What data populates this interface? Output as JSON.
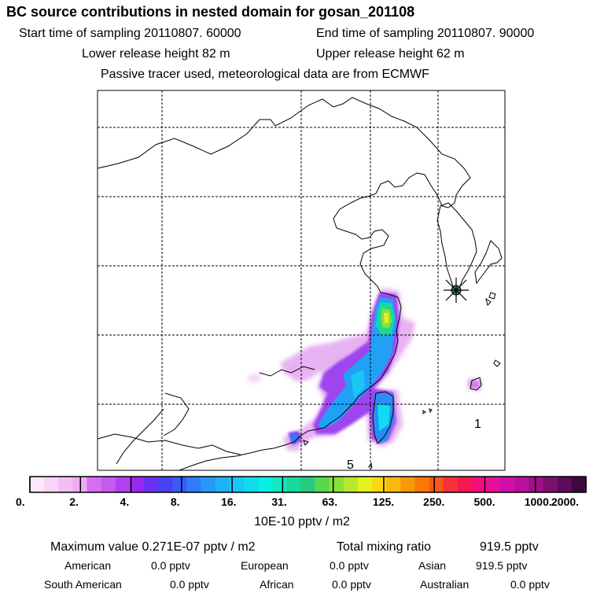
{
  "header": {
    "title": "BC  source contributions in nested domain for gosan_201108",
    "start_time": "Start time of sampling 20110807. 60000",
    "end_time": "End time of sampling 20110807. 90000",
    "lower_height": "Lower release height   82 m",
    "upper_height": "Upper release height   62 m",
    "note": "Passive tracer used, meteorological data are from ECMWF"
  },
  "map": {
    "labels": {
      "num_1": "1",
      "num_5": "5",
      "num_4": "4"
    },
    "colors": {
      "coast": "#000000",
      "grid": "#000000",
      "marker_fill": "#2c8a5a"
    }
  },
  "chart_data": {
    "type": "heatmap",
    "title": "BC  source contributions in nested domain for gosan_201108",
    "colorbar": {
      "tick_labels": [
        "0.",
        "2.",
        "4.",
        "8.",
        "16.",
        "31.",
        "63.",
        "125.",
        "250.",
        "500.",
        "1000.",
        "2000."
      ],
      "unit_label": "10E-10 pptv / m2",
      "colors": [
        "#fce8fc",
        "#f8d4f8",
        "#f2bff4",
        "#eeaaf2",
        "#d56ef0",
        "#c35cf0",
        "#b040f0",
        "#9a28f0",
        "#6a30f2",
        "#4a40f4",
        "#3c5cf6",
        "#2f7cf8",
        "#2898f8",
        "#20b0f6",
        "#18c8f4",
        "#10dcef",
        "#06f0e4",
        "#10e8c0",
        "#18d89c",
        "#26cc7c",
        "#58d84c",
        "#88e038",
        "#b8e82c",
        "#e4f020",
        "#f8d810",
        "#f8b80c",
        "#f89808",
        "#f87808",
        "#f85818",
        "#f83038",
        "#f81850",
        "#f80c7c",
        "#e81098",
        "#d010a8",
        "#b8109c",
        "#9c1088",
        "#7c1070",
        "#5c0c58",
        "#3c0840"
      ]
    },
    "receptor": "gosan",
    "max_value": "0.271E-07 pptv / m2",
    "total_mixing_ratio": "919.5 pptv",
    "contributions": [
      {
        "region": "American",
        "value": "0.0 pptv"
      },
      {
        "region": "European",
        "value": "0.0 pptv"
      },
      {
        "region": "Asian",
        "value": "919.5 pptv"
      },
      {
        "region": "South American",
        "value": "0.0 pptv"
      },
      {
        "region": "African",
        "value": "0.0 pptv"
      },
      {
        "region": "Australian",
        "value": "0.0 pptv"
      }
    ]
  },
  "stats": {
    "max_label": "Maximum value  0.271E-07 pptv / m2",
    "total_label": "Total mixing ratio",
    "total_value": "919.5 pptv"
  }
}
